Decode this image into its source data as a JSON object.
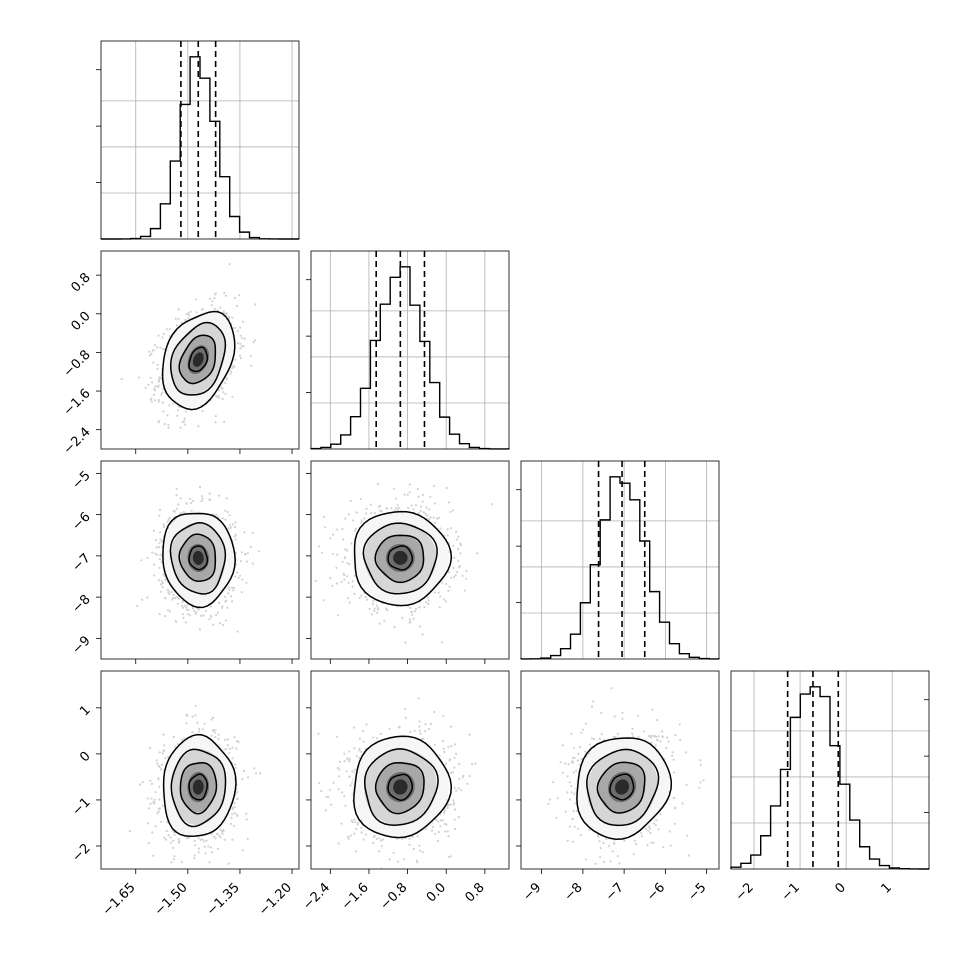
{
  "chart_data": {
    "type": "corner",
    "grid": true,
    "parameters": [
      {
        "range": [
          -1.75,
          -1.18
        ],
        "ticks": [
          -1.65,
          -1.5,
          -1.35,
          -1.2
        ],
        "tick_labels": [
          "-1.65",
          "-1.50",
          "-1.35",
          "-1.20"
        ],
        "mean": -1.47,
        "sd": 0.052,
        "quantiles": [
          -1.52,
          -1.47,
          -1.42
        ]
      },
      {
        "range": [
          -2.8,
          1.3
        ],
        "ticks": [
          -2.4,
          -1.6,
          -0.8,
          0.0,
          0.8
        ],
        "tick_labels": [
          "-2.4",
          "-1.6",
          "-0.8",
          "0.0",
          "0.8"
        ],
        "mean": -0.95,
        "sd": 0.5,
        "quantiles": [
          -1.45,
          -0.95,
          -0.45
        ]
      },
      {
        "range": [
          -9.5,
          -4.7
        ],
        "ticks": [
          -9,
          -8,
          -7,
          -6,
          -5
        ],
        "tick_labels": [
          "-9",
          "-8",
          "-7",
          "-6",
          "-5"
        ],
        "mean": -7.05,
        "sd": 0.57,
        "quantiles": [
          -7.62,
          -7.05,
          -6.5
        ]
      },
      {
        "range": [
          -2.5,
          1.8
        ],
        "ticks": [
          -2,
          -1,
          0,
          1
        ],
        "tick_labels": [
          "-2",
          "-1",
          "0",
          "1"
        ],
        "mean": -0.72,
        "sd": 0.55,
        "quantiles": [
          -1.27,
          -0.72,
          -0.17
        ]
      }
    ],
    "pairs": [
      {
        "row": 1,
        "col": 0,
        "correlation": 0.3
      },
      {
        "row": 2,
        "col": 0,
        "correlation": -0.05
      },
      {
        "row": 2,
        "col": 1,
        "correlation": 0.0
      },
      {
        "row": 3,
        "col": 0,
        "correlation": 0.05
      },
      {
        "row": 3,
        "col": 1,
        "correlation": 0.05
      },
      {
        "row": 3,
        "col": 2,
        "correlation": 0.1
      }
    ]
  }
}
